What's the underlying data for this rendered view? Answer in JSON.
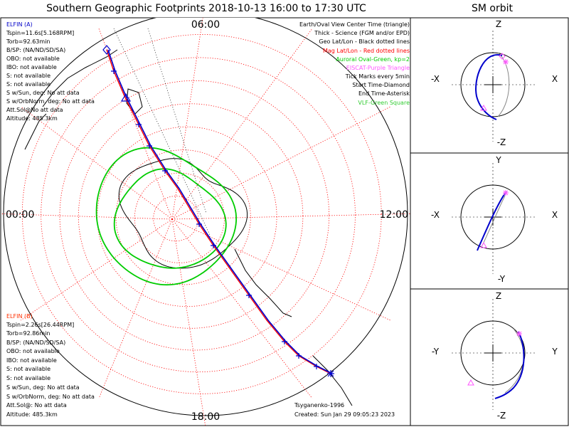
{
  "title": "Southern Geographic Footprints 2018-10-13 16:00 to 17:30 UTC",
  "colors": {
    "elfin_a": "#0000c8",
    "elfin_b": "#ff3000",
    "track_a": "#0000cc",
    "track_b": "#ff0000",
    "aurora": "#00cc00",
    "eiscat": "#ff55ff",
    "vlf": "#33cc33",
    "grid": "#ff0000",
    "geo": "#000000",
    "orbit_b": "#888888"
  },
  "chart_data": {
    "type": "polar footprint map",
    "title": "Southern Geographic Footprints 2018-10-13 16:00 to 17:30 UTC",
    "clock_labels": {
      "top": "06:00",
      "left": "00:00",
      "right": "12:00",
      "bottom": "18:00"
    },
    "grid_lat_step_deg": 10,
    "grid_lon_step_deg": 30,
    "legend": [
      {
        "text": "Earth/Oval View Center Time (triangle)",
        "color": "#000000"
      },
      {
        "text": "Thick - Science (FGM and/or EPD)",
        "color": "#000000"
      },
      {
        "text": "Geo Lat/Lon - Black dotted lines",
        "color": "#000000"
      },
      {
        "text": "Mag Lat/Lon - Red dotted lines",
        "color": "#ff0000"
      },
      {
        "text": "Auroral Oval-Green, kp=2",
        "color": "#00cc00"
      },
      {
        "text": "EISCAT-Purple Triangle",
        "color": "#ff55ff"
      },
      {
        "text": "Tick Marks every 5min",
        "color": "#000000"
      },
      {
        "text": "Start Time-Diamond",
        "color": "#000000"
      },
      {
        "text": "End Time-Asterisk",
        "color": "#000000"
      },
      {
        "text": "VLF-Green Square",
        "color": "#33cc33"
      }
    ],
    "satellites": [
      {
        "name": "ELFIN (A)",
        "lines": [
          "Tspin=11.6s[5.168RPM]",
          "Torb=92.63min",
          "B/SP: (NA/ND/SD/SA)",
          "OBO: not available",
          "IBO: not available",
          "S: not available",
          "S: not available",
          "S w/Sun, deg: No att data",
          "S w/OrbNorm, deg: No att data",
          "Att.Sol@No att data",
          "Altitude: 485.3km"
        ]
      },
      {
        "name": "ELFIN (B)",
        "lines": [
          "Tspin=2.26s[26.44RPM]",
          "Torb=92.86min",
          "B/SP: (NA/ND/SD/SA)",
          "OBO: not available",
          "IBO: not available",
          "S: not available",
          "S: not available",
          "S w/Sun, deg: No att data",
          "S w/OrbNorm, deg: No att data",
          "Att.Sol@: No att data",
          "Altitude: 485.3km"
        ]
      }
    ],
    "model": "Tsyganenko-1996",
    "created": "Created: Sun Jan 29 09:05:23 2023"
  },
  "sm_orbit": {
    "title": "SM orbit",
    "panels": [
      {
        "name": "xz",
        "top": "Z",
        "bottom": "-Z",
        "left": "-X",
        "right": "X"
      },
      {
        "name": "xy",
        "top": "Y",
        "bottom": "-Y",
        "left": "-X",
        "right": "X"
      },
      {
        "name": "yz",
        "top": "Z",
        "bottom": "-Z",
        "left": "-Y",
        "right": "Y"
      }
    ]
  }
}
